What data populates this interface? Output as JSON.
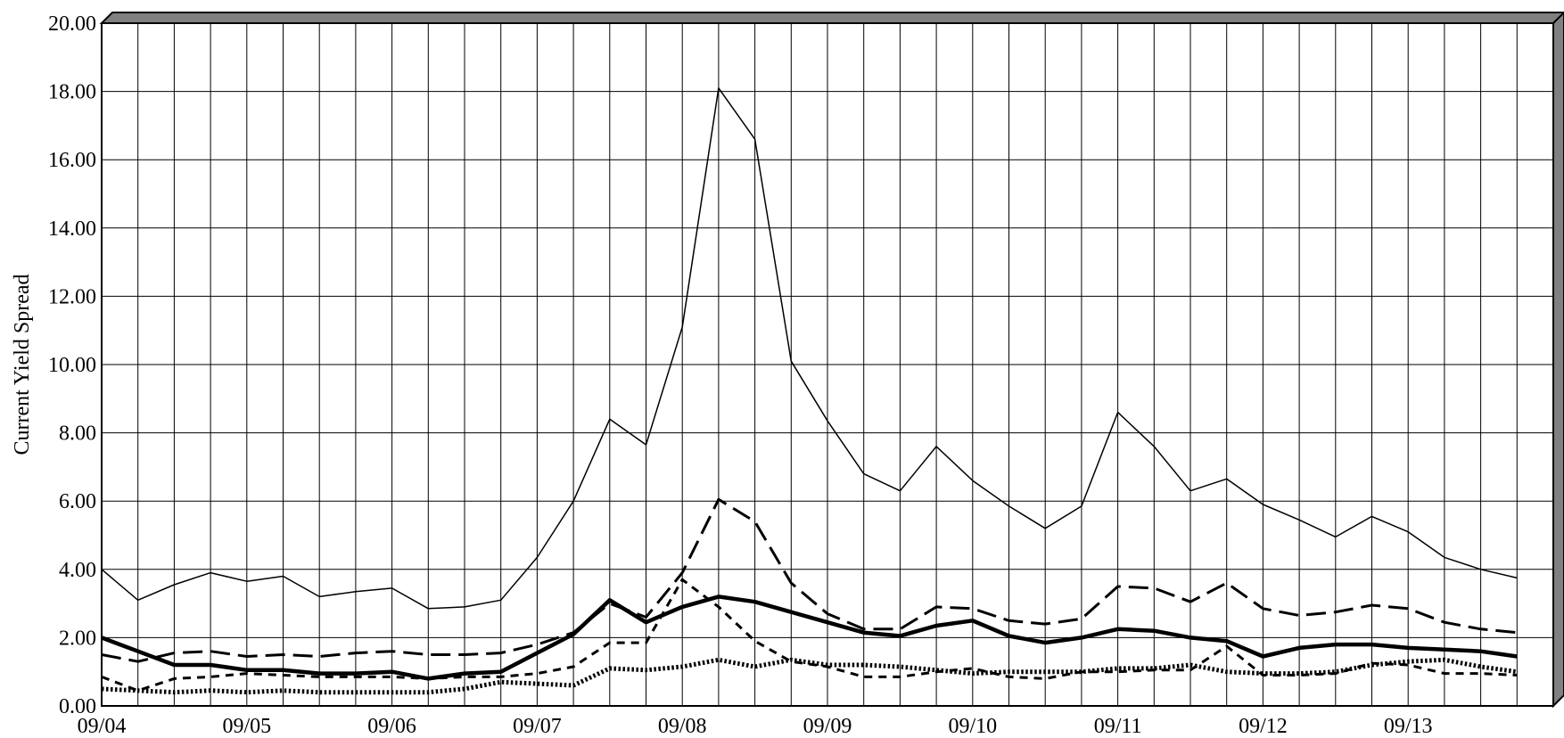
{
  "chart_data": {
    "type": "line",
    "title": "",
    "xlabel": "",
    "ylabel": "Current Yield Spread",
    "ylim": [
      0,
      20
    ],
    "yticks": [
      "0.00",
      "2.00",
      "4.00",
      "6.00",
      "8.00",
      "10.00",
      "12.00",
      "14.00",
      "16.00",
      "18.00",
      "20.00"
    ],
    "xtick_labels": [
      "09/04",
      "09/05",
      "09/06",
      "09/07",
      "09/08",
      "09/09",
      "09/10",
      "09/11",
      "09/12",
      "09/13"
    ],
    "points_per_label": 4,
    "grid": true,
    "legend": "none",
    "colors": {
      "line": "#000000",
      "grid": "#000000",
      "frame_top": "#808080",
      "background": "#ffffff"
    },
    "series": [
      {
        "style": "thin-solid",
        "values": [
          4.0,
          3.1,
          3.55,
          3.9,
          3.65,
          3.8,
          3.2,
          3.35,
          3.45,
          2.85,
          2.9,
          3.1,
          4.35,
          6.0,
          8.4,
          7.65,
          11.1,
          18.1,
          16.6,
          10.1,
          8.35,
          6.8,
          6.3,
          7.6,
          6.6,
          5.85,
          5.2,
          5.85,
          8.6,
          7.6,
          6.3,
          6.65,
          5.9,
          5.45,
          4.95,
          5.55,
          5.1,
          4.35,
          4.0,
          3.75
        ]
      },
      {
        "style": "dashed-medium",
        "values": [
          1.5,
          1.3,
          1.55,
          1.6,
          1.45,
          1.5,
          1.45,
          1.55,
          1.6,
          1.5,
          1.5,
          1.55,
          1.8,
          2.15,
          3.0,
          2.6,
          3.9,
          6.05,
          5.4,
          3.6,
          2.7,
          2.25,
          2.25,
          2.9,
          2.85,
          2.5,
          2.4,
          2.55,
          3.5,
          3.45,
          3.05,
          3.6,
          2.85,
          2.65,
          2.75,
          2.95,
          2.85,
          2.45,
          2.25,
          2.15
        ]
      },
      {
        "style": "thick-solid",
        "values": [
          2.0,
          1.6,
          1.2,
          1.2,
          1.05,
          1.05,
          0.95,
          0.95,
          1.0,
          0.8,
          0.95,
          1.0,
          1.55,
          2.1,
          3.1,
          2.45,
          2.9,
          3.2,
          3.05,
          2.75,
          2.45,
          2.15,
          2.05,
          2.35,
          2.5,
          2.05,
          1.85,
          2.0,
          2.25,
          2.2,
          2.0,
          1.9,
          1.45,
          1.7,
          1.8,
          1.8,
          1.7,
          1.65,
          1.6,
          1.45
        ]
      },
      {
        "style": "dashed-short",
        "values": [
          0.85,
          0.45,
          0.8,
          0.85,
          0.95,
          0.9,
          0.85,
          0.85,
          0.85,
          0.8,
          0.85,
          0.85,
          0.95,
          1.15,
          1.85,
          1.85,
          3.7,
          2.9,
          1.9,
          1.3,
          1.15,
          0.85,
          0.85,
          1.0,
          1.1,
          0.85,
          0.8,
          1.0,
          1.0,
          1.05,
          1.05,
          1.75,
          0.9,
          0.9,
          0.95,
          1.25,
          1.2,
          0.95,
          0.95,
          0.9
        ]
      },
      {
        "style": "dotted-thick",
        "values": [
          0.5,
          0.45,
          0.4,
          0.45,
          0.4,
          0.45,
          0.4,
          0.4,
          0.4,
          0.4,
          0.5,
          0.7,
          0.65,
          0.6,
          1.1,
          1.05,
          1.15,
          1.35,
          1.15,
          1.35,
          1.2,
          1.2,
          1.15,
          1.05,
          0.95,
          1.0,
          1.0,
          1.0,
          1.1,
          1.1,
          1.2,
          1.0,
          0.95,
          0.95,
          1.0,
          1.2,
          1.3,
          1.35,
          1.15,
          1.0
        ]
      }
    ]
  }
}
